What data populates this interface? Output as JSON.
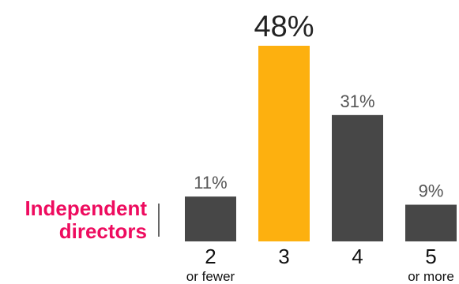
{
  "chart_data": {
    "type": "bar",
    "ylabel_lines": [
      "Independent",
      "directors"
    ],
    "categories": [
      "2",
      "3",
      "4",
      "5"
    ],
    "category_sublabels": [
      "or fewer",
      "",
      "",
      "or more"
    ],
    "values": [
      11,
      48,
      31,
      9
    ],
    "value_labels": [
      "11%",
      "48%",
      "31%",
      "9%"
    ],
    "highlight_index": 1,
    "ylim": [
      0,
      48
    ],
    "grid": false,
    "colors": {
      "bar": "#474747",
      "highlight": "#fdb00f",
      "label_accent": "#ee0c5f",
      "value_text": "#555555",
      "value_text_highlight": "#222222",
      "category_text": "#111111"
    }
  }
}
